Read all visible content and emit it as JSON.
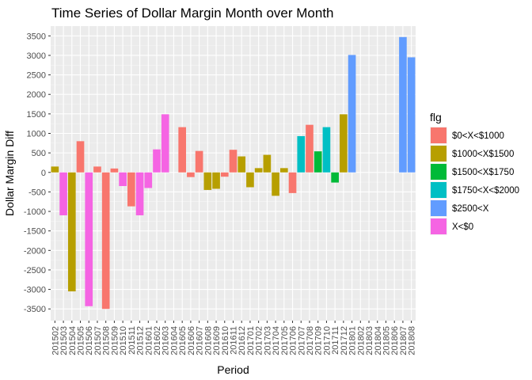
{
  "chart_data": {
    "type": "bar",
    "title": "Time Series of Dollar Margin Month over Month",
    "xlabel": "Period",
    "ylabel": "Dollar Margin Diff",
    "ylim": [
      -3800,
      3750
    ],
    "yticks": [
      -3500,
      -3000,
      -2500,
      -2000,
      -1500,
      -1000,
      -500,
      0,
      500,
      1000,
      1500,
      2000,
      2500,
      3000,
      3500
    ],
    "grid": true,
    "legend": {
      "title": "flg",
      "position": "right",
      "entries": [
        {
          "label": "$0<X<$1000",
          "color": "#F8766D"
        },
        {
          "label": "$1000<X$1500",
          "color": "#B79F00"
        },
        {
          "label": "$1500<X$1750",
          "color": "#00BA38"
        },
        {
          "label": "$1750<X<$2000",
          "color": "#00BFC4"
        },
        {
          "label": "$2500<X",
          "color": "#619CFF"
        },
        {
          "label": "X<$0",
          "color": "#F564E3"
        }
      ]
    },
    "categories": [
      "201502",
      "201503",
      "201504",
      "201505",
      "201506",
      "201507",
      "201508",
      "201509",
      "201510",
      "201511",
      "201512",
      "201601",
      "201602",
      "201603",
      "201604",
      "201605",
      "201606",
      "201607",
      "201608",
      "201609",
      "201610",
      "201611",
      "201612",
      "201701",
      "201702",
      "201703",
      "201704",
      "201705",
      "201706",
      "201707",
      "201708",
      "201709",
      "201710",
      "201711",
      "201712",
      "201801",
      "201802",
      "201803",
      "201804",
      "201805",
      "201806",
      "201807",
      "201808"
    ],
    "tick_labels": [
      "201502",
      "201503",
      "201504",
      "201505",
      "201506",
      "201507",
      "201508",
      "201509",
      "201510",
      "201511",
      "201512",
      "201601",
      "201602",
      "201603",
      "201604",
      "201605",
      "201606",
      "201607",
      "201608",
      "201609",
      "201610",
      "201611",
      "201612",
      "201701",
      "201702",
      "201703",
      "201704",
      "201705",
      "201706",
      "201707",
      "201708",
      "201709",
      "201710",
      "201711",
      "201712",
      "201801",
      "201802",
      "201803",
      "201804",
      "201805",
      "201806",
      "201807",
      "201808"
    ],
    "bars": [
      {
        "x": 0,
        "value": 150,
        "group": 1
      },
      {
        "x": 1,
        "value": -1100,
        "group": 5
      },
      {
        "x": 2,
        "value": -3050,
        "group": 1
      },
      {
        "x": 3,
        "value": 800,
        "group": 0
      },
      {
        "x": 4,
        "value": -3430,
        "group": 5
      },
      {
        "x": 5,
        "value": 150,
        "group": 0
      },
      {
        "x": 6,
        "value": -3500,
        "group": 0
      },
      {
        "x": 7,
        "value": 100,
        "group": 0
      },
      {
        "x": 8,
        "value": -350,
        "group": 5
      },
      {
        "x": 9,
        "value": -870,
        "group": 0
      },
      {
        "x": 10,
        "value": -1100,
        "group": 5
      },
      {
        "x": 11,
        "value": -400,
        "group": 5
      },
      {
        "x": 12,
        "value": 590,
        "group": 5
      },
      {
        "x": 13,
        "value": 1490,
        "group": 5
      },
      {
        "x": 15,
        "value": 1160,
        "group": 0
      },
      {
        "x": 16,
        "value": -120,
        "group": 0
      },
      {
        "x": 17,
        "value": 550,
        "group": 0
      },
      {
        "x": 18,
        "value": -450,
        "group": 1
      },
      {
        "x": 19,
        "value": -420,
        "group": 1
      },
      {
        "x": 20,
        "value": -110,
        "group": 0
      },
      {
        "x": 21,
        "value": 580,
        "group": 0
      },
      {
        "x": 22,
        "value": 410,
        "group": 1
      },
      {
        "x": 23,
        "value": -380,
        "group": 1
      },
      {
        "x": 24,
        "value": 110,
        "group": 1
      },
      {
        "x": 25,
        "value": 450,
        "group": 1
      },
      {
        "x": 26,
        "value": -600,
        "group": 1
      },
      {
        "x": 27,
        "value": 110,
        "group": 1
      },
      {
        "x": 28,
        "value": -530,
        "group": 0
      },
      {
        "x": 29,
        "value": 930,
        "group": 3
      },
      {
        "x": 30,
        "value": 1220,
        "group": 0
      },
      {
        "x": 31,
        "value": 540,
        "group": 2
      },
      {
        "x": 32,
        "value": 1160,
        "group": 3
      },
      {
        "x": 33,
        "value": -260,
        "group": 2
      },
      {
        "x": 34,
        "value": 1490,
        "group": 1
      },
      {
        "x": 35,
        "value": 3010,
        "group": 4
      },
      {
        "x": 41,
        "value": 3470,
        "group": 4
      },
      {
        "x": 42,
        "value": 2950,
        "group": 4
      }
    ]
  }
}
